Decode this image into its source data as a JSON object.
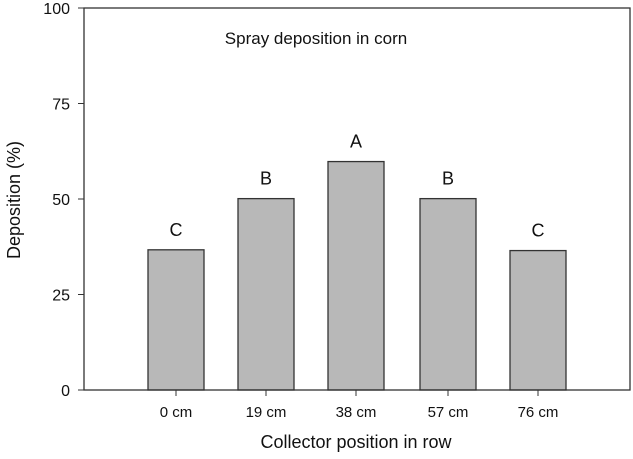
{
  "chart_data": {
    "type": "bar",
    "title": "Spray deposition in corn",
    "xlabel": "Collector position in row",
    "ylabel": "Deposition (%)",
    "ylim": [
      0,
      100
    ],
    "yticks": [
      0,
      25,
      50,
      75,
      100
    ],
    "grid": false,
    "legend": null,
    "categories": [
      "0 cm",
      "19 cm",
      "38 cm",
      "57 cm",
      "76 cm"
    ],
    "values": [
      36.7,
      50.1,
      59.8,
      50.1,
      36.5
    ],
    "annotations": [
      "C",
      "B",
      "A",
      "B",
      "C"
    ],
    "bar_color": "#b8b8b8",
    "edge_color": "#333333"
  }
}
